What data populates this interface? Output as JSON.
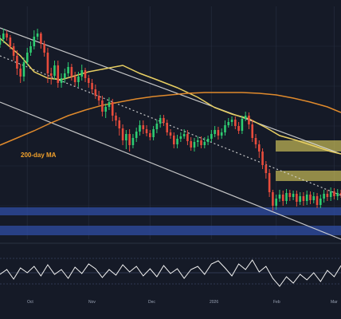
{
  "chart_data": {
    "type": "line",
    "x_ticks": [
      "Oct",
      "Nov",
      "Dec",
      "2026",
      "Feb",
      "Mar"
    ],
    "annotations": [
      {
        "text": "200-day MA",
        "color": "#f2a12b"
      }
    ],
    "colors": {
      "background": "#151a27",
      "grid": "#2c3548",
      "up": "#2ecc71",
      "down": "#e74c3c",
      "ma_fast": "#e8cf62",
      "ma_slow": "#e08a2c",
      "channel": "#d9d9d9",
      "support_zone": "#2f4ea5",
      "resistance_zone": "#d6c85a",
      "oscillator": "#f2f2f2"
    },
    "channel": {
      "upper_line": [
        [
          0.0,
          35.0
        ],
        [
          1.0,
          193.0
        ]
      ],
      "lower_line": [
        [
          0.0,
          128.0
        ],
        [
          1.0,
          300.0
        ]
      ],
      "middle_line": [
        [
          0.0,
          70.0
        ],
        [
          1.0,
          245.0
        ]
      ]
    },
    "series": [
      {
        "values": [
          [
            0.0,
            48
          ],
          [
            0.06,
            70
          ],
          [
            0.1,
            90
          ],
          [
            0.14,
            98
          ],
          [
            0.18,
            100
          ],
          [
            0.22,
            95
          ],
          [
            0.26,
            90
          ],
          [
            0.31,
            86
          ],
          [
            0.36,
            82
          ],
          [
            0.41,
            92
          ],
          [
            0.46,
            100
          ],
          [
            0.52,
            110
          ],
          [
            0.58,
            122
          ],
          [
            0.63,
            135
          ],
          [
            0.68,
            143
          ],
          [
            0.73,
            149
          ],
          [
            0.78,
            160
          ],
          [
            0.82,
            170
          ],
          [
            0.87,
            176
          ],
          [
            0.92,
            183
          ],
          [
            0.97,
            190
          ],
          [
            1.0,
            193
          ]
        ]
      },
      {
        "values": [
          [
            0.0,
            182
          ],
          [
            0.05,
            173
          ],
          [
            0.1,
            164
          ],
          [
            0.15,
            154
          ],
          [
            0.2,
            145
          ],
          [
            0.25,
            138
          ],
          [
            0.3,
            132
          ],
          [
            0.35,
            128
          ],
          [
            0.4,
            124
          ],
          [
            0.45,
            121
          ],
          [
            0.5,
            119
          ],
          [
            0.55,
            117
          ],
          [
            0.6,
            116
          ],
          [
            0.66,
            116
          ],
          [
            0.71,
            116
          ],
          [
            0.76,
            117
          ],
          [
            0.81,
            119
          ],
          [
            0.86,
            123
          ],
          [
            0.91,
            128
          ],
          [
            0.96,
            134
          ],
          [
            1.0,
            141
          ]
        ]
      }
    ],
    "support_zones": [
      {
        "y_from": 260,
        "y_to": 270
      },
      {
        "y_from": 283,
        "y_to": 295
      }
    ],
    "resistance_zones": [
      {
        "y_from": 176,
        "y_to": 190
      },
      {
        "y_from": 214,
        "y_to": 227
      }
    ],
    "candles": [
      [
        0.0,
        56,
        49,
        44,
        60
      ],
      [
        0.01,
        49,
        42,
        36,
        54
      ],
      [
        0.02,
        42,
        47,
        38,
        51
      ],
      [
        0.03,
        47,
        58,
        44,
        62
      ],
      [
        0.04,
        58,
        70,
        54,
        76
      ],
      [
        0.05,
        70,
        86,
        63,
        94
      ],
      [
        0.06,
        86,
        96,
        80,
        104
      ],
      [
        0.07,
        96,
        78,
        72,
        102
      ],
      [
        0.08,
        78,
        66,
        60,
        82
      ],
      [
        0.09,
        66,
        58,
        52,
        70
      ],
      [
        0.1,
        58,
        46,
        38,
        62
      ],
      [
        0.11,
        46,
        42,
        36,
        50
      ],
      [
        0.12,
        42,
        55,
        40,
        61
      ],
      [
        0.13,
        55,
        66,
        51,
        71
      ],
      [
        0.14,
        66,
        92,
        60,
        104
      ],
      [
        0.15,
        92,
        95,
        85,
        106
      ],
      [
        0.16,
        95,
        82,
        76,
        100
      ],
      [
        0.17,
        82,
        104,
        76,
        110
      ],
      [
        0.18,
        104,
        98,
        92,
        110
      ],
      [
        0.19,
        98,
        92,
        86,
        104
      ],
      [
        0.2,
        92,
        84,
        78,
        96
      ],
      [
        0.21,
        84,
        96,
        80,
        101
      ],
      [
        0.22,
        96,
        103,
        90,
        108
      ],
      [
        0.23,
        103,
        96,
        90,
        109
      ],
      [
        0.24,
        96,
        88,
        81,
        101
      ],
      [
        0.25,
        88,
        98,
        85,
        103
      ],
      [
        0.26,
        98,
        104,
        94,
        110
      ],
      [
        0.27,
        104,
        112,
        99,
        117
      ],
      [
        0.28,
        112,
        120,
        106,
        124
      ],
      [
        0.29,
        120,
        126,
        114,
        132
      ],
      [
        0.3,
        126,
        140,
        120,
        146
      ],
      [
        0.31,
        140,
        134,
        130,
        148
      ],
      [
        0.32,
        134,
        128,
        122,
        138
      ],
      [
        0.33,
        128,
        145,
        124,
        152
      ],
      [
        0.34,
        145,
        151,
        141,
        158
      ],
      [
        0.35,
        151,
        161,
        147,
        170
      ],
      [
        0.36,
        161,
        176,
        156,
        182
      ],
      [
        0.37,
        176,
        168,
        163,
        187
      ],
      [
        0.38,
        168,
        182,
        162,
        190
      ],
      [
        0.39,
        182,
        173,
        168,
        186
      ],
      [
        0.4,
        173,
        165,
        160,
        178
      ],
      [
        0.41,
        165,
        157,
        151,
        170
      ],
      [
        0.42,
        157,
        162,
        151,
        168
      ],
      [
        0.43,
        162,
        167,
        157,
        171
      ],
      [
        0.44,
        167,
        172,
        163,
        176
      ],
      [
        0.45,
        172,
        162,
        158,
        176
      ],
      [
        0.46,
        162,
        155,
        150,
        167
      ],
      [
        0.47,
        155,
        148,
        144,
        160
      ],
      [
        0.48,
        148,
        154,
        144,
        158
      ],
      [
        0.49,
        154,
        166,
        150,
        170
      ],
      [
        0.5,
        166,
        170,
        162,
        174
      ],
      [
        0.51,
        170,
        181,
        166,
        186
      ],
      [
        0.52,
        181,
        174,
        169,
        186
      ],
      [
        0.53,
        174,
        171,
        166,
        178
      ],
      [
        0.54,
        171,
        168,
        162,
        174
      ],
      [
        0.55,
        168,
        177,
        163,
        182
      ],
      [
        0.56,
        177,
        185,
        172,
        189
      ],
      [
        0.57,
        185,
        178,
        173,
        190
      ],
      [
        0.58,
        178,
        176,
        171,
        184
      ],
      [
        0.59,
        176,
        182,
        171,
        186
      ],
      [
        0.6,
        182,
        178,
        172,
        186
      ],
      [
        0.61,
        178,
        174,
        170,
        182
      ],
      [
        0.62,
        174,
        168,
        163,
        178
      ],
      [
        0.63,
        168,
        163,
        158,
        172
      ],
      [
        0.64,
        163,
        170,
        159,
        175
      ],
      [
        0.65,
        170,
        166,
        161,
        174
      ],
      [
        0.66,
        166,
        157,
        151,
        170
      ],
      [
        0.67,
        157,
        153,
        148,
        160
      ],
      [
        0.68,
        153,
        150,
        146,
        158
      ],
      [
        0.69,
        150,
        158,
        146,
        162
      ],
      [
        0.7,
        158,
        164,
        153,
        168
      ],
      [
        0.71,
        164,
        149,
        145,
        168
      ],
      [
        0.72,
        149,
        145,
        140,
        152
      ],
      [
        0.73,
        145,
        156,
        141,
        162
      ],
      [
        0.74,
        156,
        173,
        150,
        178
      ],
      [
        0.75,
        173,
        181,
        168,
        186
      ],
      [
        0.76,
        181,
        190,
        176,
        198
      ],
      [
        0.77,
        190,
        207,
        186,
        212
      ],
      [
        0.78,
        207,
        217,
        202,
        224
      ],
      [
        0.79,
        217,
        241,
        212,
        247
      ],
      [
        0.8,
        241,
        258,
        238,
        264
      ],
      [
        0.81,
        258,
        249,
        244,
        263
      ],
      [
        0.82,
        249,
        244,
        238,
        253
      ],
      [
        0.83,
        244,
        252,
        239,
        258
      ],
      [
        0.84,
        252,
        242,
        237,
        256
      ],
      [
        0.85,
        242,
        247,
        238,
        252
      ],
      [
        0.86,
        247,
        243,
        239,
        251
      ],
      [
        0.87,
        243,
        253,
        239,
        259
      ],
      [
        0.88,
        253,
        246,
        241,
        257
      ],
      [
        0.89,
        246,
        252,
        241,
        258
      ],
      [
        0.9,
        252,
        244,
        239,
        257
      ],
      [
        0.91,
        244,
        251,
        240,
        256
      ],
      [
        0.92,
        251,
        246,
        241,
        255
      ],
      [
        0.93,
        246,
        257,
        242,
        261
      ],
      [
        0.94,
        257,
        249,
        244,
        261
      ],
      [
        0.95,
        249,
        243,
        238,
        254
      ],
      [
        0.96,
        243,
        247,
        238,
        252
      ],
      [
        0.97,
        247,
        240,
        235,
        252
      ],
      [
        0.98,
        240,
        246,
        236,
        250
      ],
      [
        0.99,
        246,
        242,
        237,
        251
      ],
      [
        1.0,
        242,
        244,
        238,
        248
      ]
    ],
    "oscillator": [
      [
        0.0,
        344
      ],
      [
        0.02,
        338
      ],
      [
        0.04,
        350
      ],
      [
        0.06,
        336
      ],
      [
        0.08,
        342
      ],
      [
        0.1,
        334
      ],
      [
        0.12,
        346
      ],
      [
        0.14,
        332
      ],
      [
        0.16,
        344
      ],
      [
        0.18,
        338
      ],
      [
        0.2,
        349
      ],
      [
        0.22,
        335
      ],
      [
        0.24,
        343
      ],
      [
        0.26,
        331
      ],
      [
        0.28,
        337
      ],
      [
        0.3,
        348
      ],
      [
        0.32,
        338
      ],
      [
        0.34,
        345
      ],
      [
        0.36,
        332
      ],
      [
        0.38,
        341
      ],
      [
        0.4,
        334
      ],
      [
        0.42,
        346
      ],
      [
        0.44,
        337
      ],
      [
        0.46,
        347
      ],
      [
        0.48,
        333
      ],
      [
        0.5,
        343
      ],
      [
        0.52,
        337
      ],
      [
        0.54,
        349
      ],
      [
        0.56,
        338
      ],
      [
        0.58,
        334
      ],
      [
        0.6,
        344
      ],
      [
        0.62,
        331
      ],
      [
        0.64,
        327
      ],
      [
        0.66,
        336
      ],
      [
        0.68,
        346
      ],
      [
        0.7,
        331
      ],
      [
        0.72,
        338
      ],
      [
        0.74,
        326
      ],
      [
        0.76,
        341
      ],
      [
        0.78,
        334
      ],
      [
        0.8,
        349
      ],
      [
        0.82,
        359
      ],
      [
        0.84,
        347
      ],
      [
        0.86,
        355
      ],
      [
        0.88,
        344
      ],
      [
        0.9,
        351
      ],
      [
        0.92,
        342
      ],
      [
        0.94,
        353
      ],
      [
        0.96,
        339
      ],
      [
        0.98,
        347
      ],
      [
        1.0,
        333
      ]
    ]
  }
}
